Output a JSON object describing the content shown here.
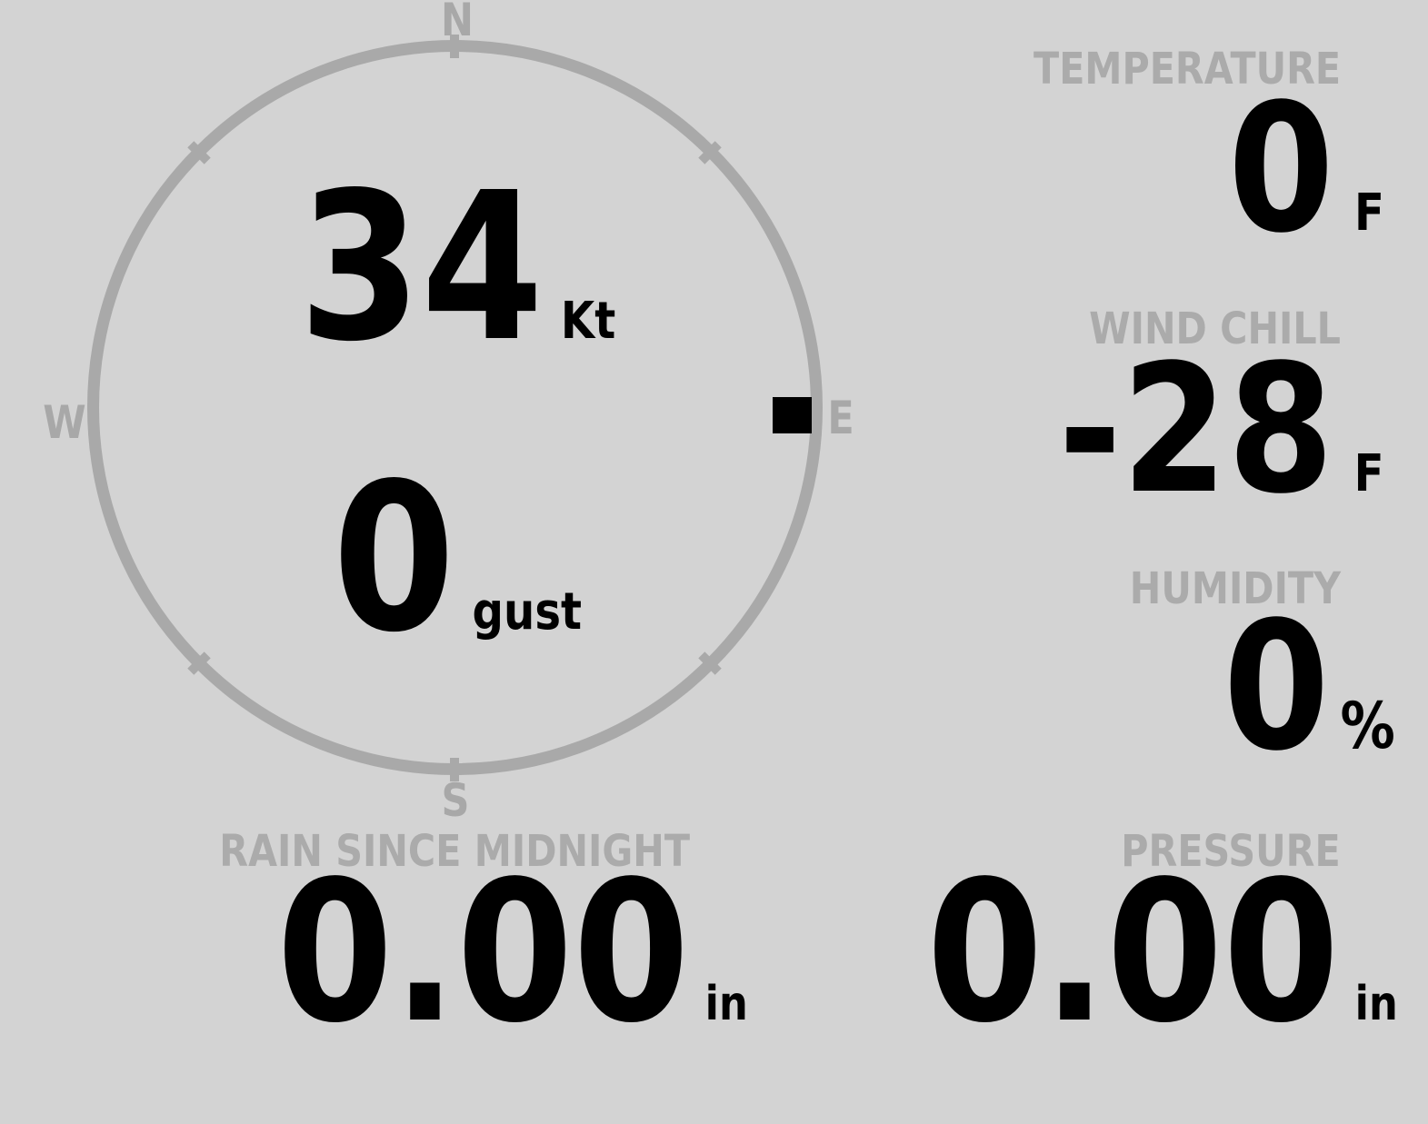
{
  "theme": {
    "background": "#d3d3d3",
    "ring_gray": "#a9a9a9",
    "label_gray": "#ababab",
    "value_black": "#000000"
  },
  "wind": {
    "speed_value": "34",
    "speed_unit": "Kt",
    "gust_value": "0",
    "gust_unit": "gust",
    "direction": "E",
    "compass": {
      "north": "N",
      "east": "E",
      "south": "S",
      "west": "W"
    }
  },
  "metrics": {
    "temperature": {
      "label": "TEMPERATURE",
      "value": "0",
      "unit": "F"
    },
    "wind_chill": {
      "label": "WIND CHILL",
      "value": "-28",
      "unit": "F"
    },
    "humidity": {
      "label": "HUMIDITY",
      "value": "0",
      "unit": "%"
    },
    "rain_since_midnight": {
      "label": "RAIN SINCE MIDNIGHT",
      "value": "0.00",
      "unit": "in"
    },
    "pressure": {
      "label": "PRESSURE",
      "value": "0.00",
      "unit": "in"
    }
  }
}
